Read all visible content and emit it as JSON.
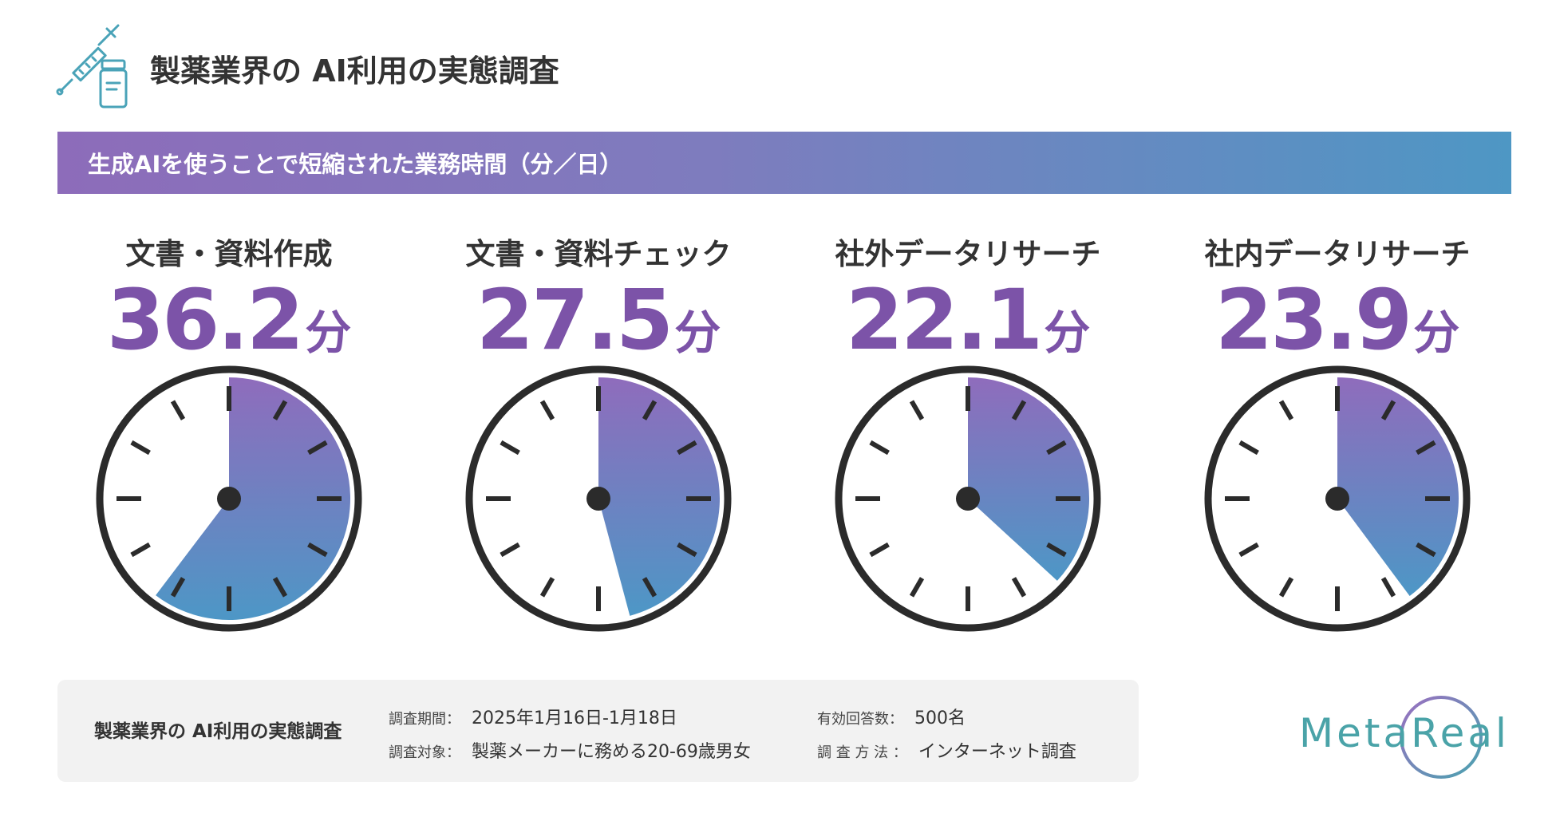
{
  "header": {
    "title": "製薬業界の AI利用の実態調査",
    "icon": "syringe-vial-icon"
  },
  "banner": {
    "text": "生成AIを使うことで短縮された業務時間（分／日）"
  },
  "chart_data": {
    "type": "clock-gauge",
    "unit": "分",
    "max_minutes_per_dial": 60,
    "colors": {
      "gradient_top": "#8f6cbc",
      "gradient_bottom": "#4d97c6",
      "value_text": "#7c53a8",
      "dial_border": "#2b2b2b"
    },
    "categories": [
      "文書・資料作成",
      "文書・資料チェック",
      "社外データリサーチ",
      "社内データリサーチ"
    ],
    "values": [
      36.2,
      27.5,
      22.1,
      23.9
    ],
    "display_values": [
      "36.2",
      "27.5",
      "22.1",
      "23.9"
    ]
  },
  "footer": {
    "title": "製薬業界の AI利用の実態調査",
    "period_label": "調査期間：",
    "period_value": "2025年1月16日-1月18日",
    "target_label": "調査対象：",
    "target_value": "製薬メーカーに務める20-69歳男女",
    "responses_label": "有効回答数：",
    "responses_value": "500名",
    "method_label": "調 査 方 法 ：",
    "method_value": "インターネット調査"
  },
  "logo": {
    "text": "MetaReal",
    "color": "#4aa3a8"
  }
}
